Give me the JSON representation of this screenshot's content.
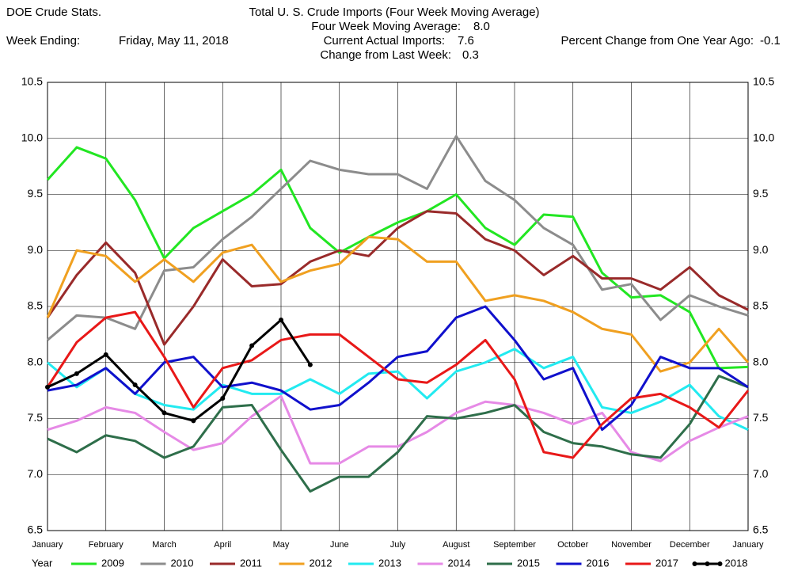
{
  "header": {
    "source": "DOE Crude Stats.",
    "title": "Total U.  S. Crude Imports (Four Week Moving Average)",
    "week_label": "Week Ending:",
    "week_date": "Friday, May 11, 2018",
    "moving_average": {
      "label": "Four Week Moving Average:",
      "value": "8.0"
    },
    "current": {
      "label": "Current Actual Imports:",
      "value": "7.6"
    },
    "change": {
      "label": "Change from Last Week:",
      "value": "0.3"
    },
    "percent": {
      "label": "Percent Change from One Year Ago:",
      "value": "-0.1"
    }
  },
  "chart_data": {
    "type": "line",
    "legend_title": "Year",
    "x": [
      0,
      0.5,
      1,
      1.5,
      2,
      2.5,
      3,
      3.5,
      4,
      4.5,
      5,
      5.5,
      6,
      6.5,
      7,
      7.5,
      8,
      8.5,
      9,
      9.5,
      10,
      10.5,
      11,
      11.5,
      12
    ],
    "xlim": [
      0,
      12
    ],
    "xticks": [
      {
        "value": 0,
        "label": "January"
      },
      {
        "value": 1,
        "label": "February"
      },
      {
        "value": 2,
        "label": "March"
      },
      {
        "value": 3,
        "label": "April"
      },
      {
        "value": 4,
        "label": "May"
      },
      {
        "value": 5,
        "label": "June"
      },
      {
        "value": 6,
        "label": "July"
      },
      {
        "value": 7,
        "label": "August"
      },
      {
        "value": 8,
        "label": "September"
      },
      {
        "value": 9,
        "label": "October"
      },
      {
        "value": 10,
        "label": "November"
      },
      {
        "value": 11,
        "label": "December"
      },
      {
        "value": 12,
        "label": "January"
      }
    ],
    "ylim": [
      6.5,
      10.5
    ],
    "yticks": [
      {
        "value": 6.5,
        "label": "6.5"
      },
      {
        "value": 7,
        "label": "7.0"
      },
      {
        "value": 7.5,
        "label": "7.5"
      },
      {
        "value": 8,
        "label": "8.0"
      },
      {
        "value": 8.5,
        "label": "8.5"
      },
      {
        "value": 9,
        "label": "9.0"
      },
      {
        "value": 9.5,
        "label": "9.5"
      },
      {
        "value": 10,
        "label": "10.0"
      },
      {
        "value": 10.5,
        "label": "10.5"
      }
    ],
    "grid": true,
    "series": [
      {
        "name": "2009",
        "color": "#22e622",
        "values": [
          9.63,
          9.92,
          9.82,
          9.45,
          8.93,
          9.2,
          9.35,
          9.5,
          9.72,
          9.2,
          8.98,
          9.12,
          9.25,
          9.35,
          9.5,
          9.2,
          9.05,
          9.32,
          9.3,
          8.8,
          8.58,
          8.6,
          8.45,
          7.95,
          7.96
        ]
      },
      {
        "name": "2010",
        "color": "#8c8c8c",
        "values": [
          8.2,
          8.42,
          8.4,
          8.3,
          8.82,
          8.85,
          9.1,
          9.3,
          9.55,
          9.8,
          9.72,
          9.68,
          9.68,
          9.55,
          10.02,
          9.62,
          9.45,
          9.2,
          9.05,
          8.65,
          8.7,
          8.38,
          8.6,
          8.5,
          8.42
        ]
      },
      {
        "name": "2011",
        "color": "#992a2a",
        "values": [
          8.4,
          8.78,
          9.07,
          8.8,
          8.16,
          8.5,
          8.92,
          8.68,
          8.7,
          8.9,
          9.0,
          8.95,
          9.2,
          9.35,
          9.33,
          9.1,
          9.0,
          8.78,
          8.95,
          8.75,
          8.75,
          8.65,
          8.85,
          8.6,
          8.47
        ]
      },
      {
        "name": "2012",
        "color": "#f0a020",
        "values": [
          8.4,
          9.0,
          8.95,
          8.72,
          8.92,
          8.72,
          8.98,
          9.05,
          8.72,
          8.82,
          8.88,
          9.12,
          9.1,
          8.9,
          8.9,
          8.55,
          8.6,
          8.55,
          8.45,
          8.3,
          8.25,
          7.92,
          8.0,
          8.3,
          8.0
        ]
      },
      {
        "name": "2013",
        "color": "#22eaf0",
        "values": [
          8.0,
          7.78,
          7.95,
          7.72,
          7.62,
          7.58,
          7.8,
          7.72,
          7.72,
          7.85,
          7.72,
          7.9,
          7.92,
          7.68,
          7.92,
          8.0,
          8.12,
          7.95,
          8.05,
          7.6,
          7.55,
          7.65,
          7.8,
          7.52,
          7.4
        ]
      },
      {
        "name": "2014",
        "color": "#e68ae6",
        "values": [
          7.4,
          7.48,
          7.6,
          7.55,
          7.38,
          7.22,
          7.28,
          7.52,
          7.7,
          7.1,
          7.1,
          7.25,
          7.25,
          7.38,
          7.55,
          7.65,
          7.62,
          7.55,
          7.45,
          7.55,
          7.2,
          7.12,
          7.3,
          7.42,
          7.52
        ]
      },
      {
        "name": "2015",
        "color": "#2e6e4a",
        "values": [
          7.32,
          7.2,
          7.35,
          7.3,
          7.15,
          7.25,
          7.6,
          7.62,
          7.22,
          6.85,
          6.98,
          6.98,
          7.2,
          7.52,
          7.5,
          7.55,
          7.62,
          7.38,
          7.28,
          7.25,
          7.18,
          7.15,
          7.45,
          7.88,
          7.78
        ]
      },
      {
        "name": "2016",
        "color": "#1010cc",
        "values": [
          7.75,
          7.8,
          7.95,
          7.72,
          8.0,
          8.05,
          7.78,
          7.82,
          7.75,
          7.58,
          7.62,
          7.82,
          8.05,
          8.1,
          8.4,
          8.5,
          8.2,
          7.85,
          7.95,
          7.4,
          7.62,
          8.05,
          7.95,
          7.95,
          7.78
        ]
      },
      {
        "name": "2017",
        "color": "#e81818",
        "values": [
          7.78,
          8.18,
          8.4,
          8.45,
          8.05,
          7.6,
          7.95,
          8.02,
          8.2,
          8.25,
          8.25,
          8.05,
          7.85,
          7.82,
          7.98,
          8.2,
          7.85,
          7.2,
          7.15,
          7.45,
          7.68,
          7.72,
          7.6,
          7.42,
          7.75
        ]
      },
      {
        "name": "2018",
        "color": "#000000",
        "markers": true,
        "values": [
          7.78,
          7.9,
          8.07,
          7.8,
          7.55,
          7.48,
          7.68,
          8.15,
          8.38,
          7.98,
          null,
          null,
          null,
          null,
          null,
          null,
          null,
          null,
          null,
          null,
          null,
          null,
          null,
          null,
          null
        ]
      }
    ]
  }
}
